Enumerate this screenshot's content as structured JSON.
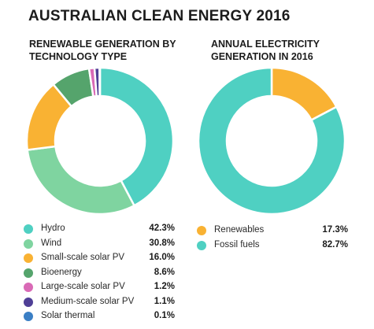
{
  "title": "AUSTRALIAN CLEAN ENERGY 2016",
  "chart_data": [
    {
      "type": "pie",
      "title": "RENEWABLE GENERATION BY TECHNOLOGY TYPE",
      "donut": true,
      "start_angle": 0,
      "slices": [
        {
          "label": "Hydro",
          "value": 42.3,
          "display": "42.3%",
          "color": "#4fd0c2"
        },
        {
          "label": "Wind",
          "value": 30.8,
          "display": "30.8%",
          "color": "#7fd4a0"
        },
        {
          "label": "Small-scale solar PV",
          "value": 16.0,
          "display": "16.0%",
          "color": "#f9b233"
        },
        {
          "label": "Bioenergy",
          "value": 8.6,
          "display": "8.6%",
          "color": "#55a46c"
        },
        {
          "label": "Large-scale solar PV",
          "value": 1.2,
          "display": "1.2%",
          "color": "#d96ab6"
        },
        {
          "label": "Medium-scale solar PV",
          "value": 1.1,
          "display": "1.1%",
          "color": "#4f3f96"
        },
        {
          "label": "Solar thermal",
          "value": 0.1,
          "display": "0.1%",
          "color": "#3b7fc5"
        }
      ]
    },
    {
      "type": "pie",
      "title": "ANNUAL ELECTRICITY GENERATION IN 2016",
      "donut": true,
      "start_angle": 0,
      "slices": [
        {
          "label": "Renewables",
          "value": 17.3,
          "display": "17.3%",
          "color": "#f9b233"
        },
        {
          "label": "Fossil fuels",
          "value": 82.7,
          "display": "82.7%",
          "color": "#4fd0c2"
        }
      ]
    }
  ]
}
